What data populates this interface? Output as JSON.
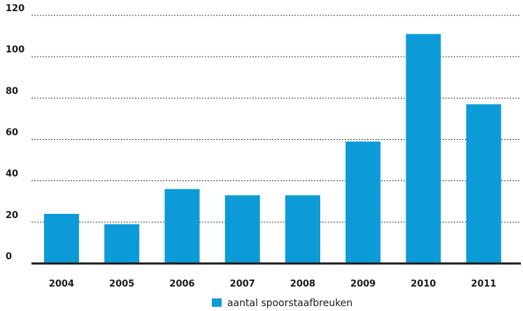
{
  "chart_data": {
    "type": "bar",
    "categories": [
      "2004",
      "2005",
      "2006",
      "2007",
      "2008",
      "2009",
      "2010",
      "2011"
    ],
    "series": [
      {
        "name": "aantal spoorstaafbreuken",
        "values": [
          24,
          19,
          36,
          33,
          33,
          59,
          111,
          77
        ]
      }
    ],
    "title": "",
    "xlabel": "",
    "ylabel": "",
    "ylim": [
      0,
      120
    ],
    "yticks": [
      0,
      20,
      40,
      60,
      80,
      100,
      120
    ],
    "grid": true,
    "grid_style": "dotted",
    "legend_position": "bottom-center",
    "colors": {
      "bar": "#0d9bd8",
      "axis": "#1a1a1a",
      "grid": "#333333"
    }
  }
}
